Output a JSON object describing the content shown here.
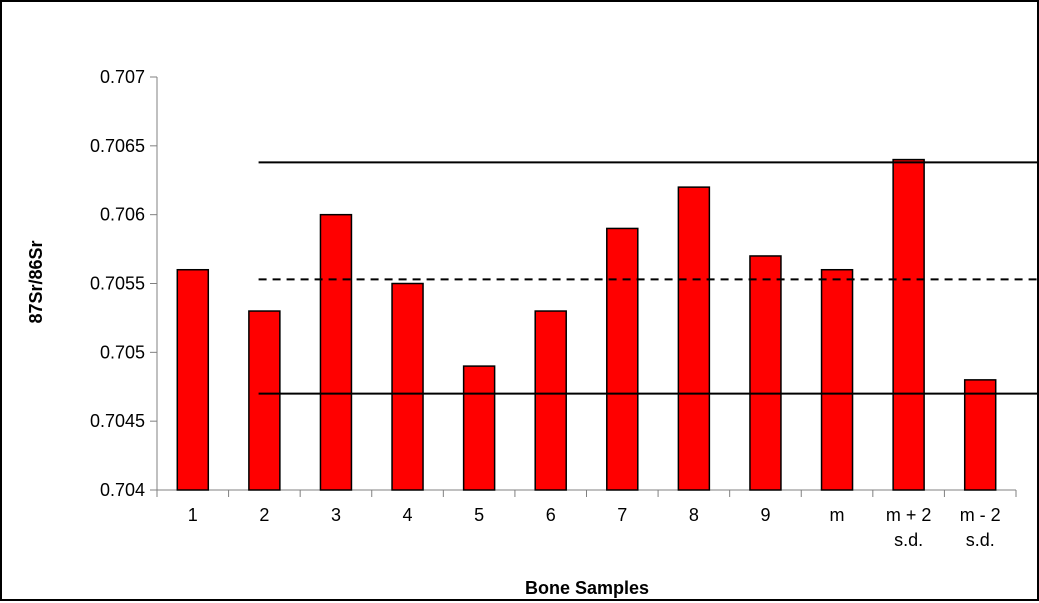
{
  "chart_data": {
    "type": "bar",
    "title": "",
    "xlabel": "Bone Samples",
    "ylabel": "87Sr/86Sr",
    "ylim": [
      0.704,
      0.707
    ],
    "yticks": [
      "0.704",
      "0.7045",
      "0.705",
      "0.7055",
      "0.706",
      "0.7065",
      "0.707"
    ],
    "categories": [
      [
        "1"
      ],
      [
        "2"
      ],
      [
        "3"
      ],
      [
        "4"
      ],
      [
        "5"
      ],
      [
        "6"
      ],
      [
        "7"
      ],
      [
        "8"
      ],
      [
        "9"
      ],
      [
        "m"
      ],
      [
        "m + 2",
        "s.d."
      ],
      [
        "m - 2",
        "s.d."
      ]
    ],
    "values": [
      0.7056,
      0.7053,
      0.706,
      0.7055,
      0.7049,
      0.7053,
      0.7059,
      0.7062,
      0.7057,
      0.7056,
      0.7064,
      0.7048
    ],
    "reference_lines": [
      {
        "style": "solid",
        "y": 0.70638
      },
      {
        "style": "dashed",
        "y": 0.70553
      },
      {
        "style": "solid",
        "y": 0.7047
      }
    ],
    "bar_color": "#ff0000",
    "bar_outline": "#000000",
    "grid": false,
    "legend": "none"
  }
}
